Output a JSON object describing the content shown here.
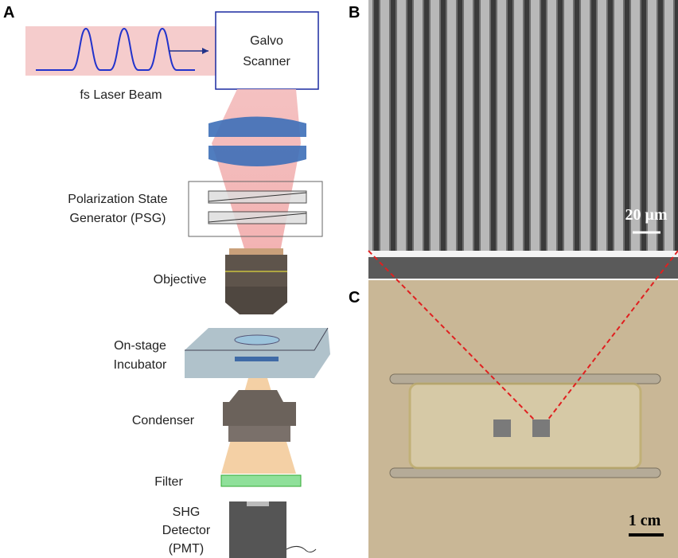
{
  "panels": {
    "a": {
      "label": "A",
      "beam": "fs Laser Beam",
      "scanner": [
        "Galvo",
        "Scanner"
      ],
      "psg": [
        "Polarization State",
        "Generator (PSG)"
      ],
      "objective": "Objective",
      "incubator": [
        "On-stage",
        "Incubator"
      ],
      "condenser": "Condenser",
      "filter": "Filter",
      "detector": [
        "SHG",
        "Detector",
        "(PMT)"
      ]
    },
    "b": {
      "label": "B",
      "scale": "20 μm"
    },
    "c": {
      "label": "C",
      "scale": "1 cm"
    }
  }
}
